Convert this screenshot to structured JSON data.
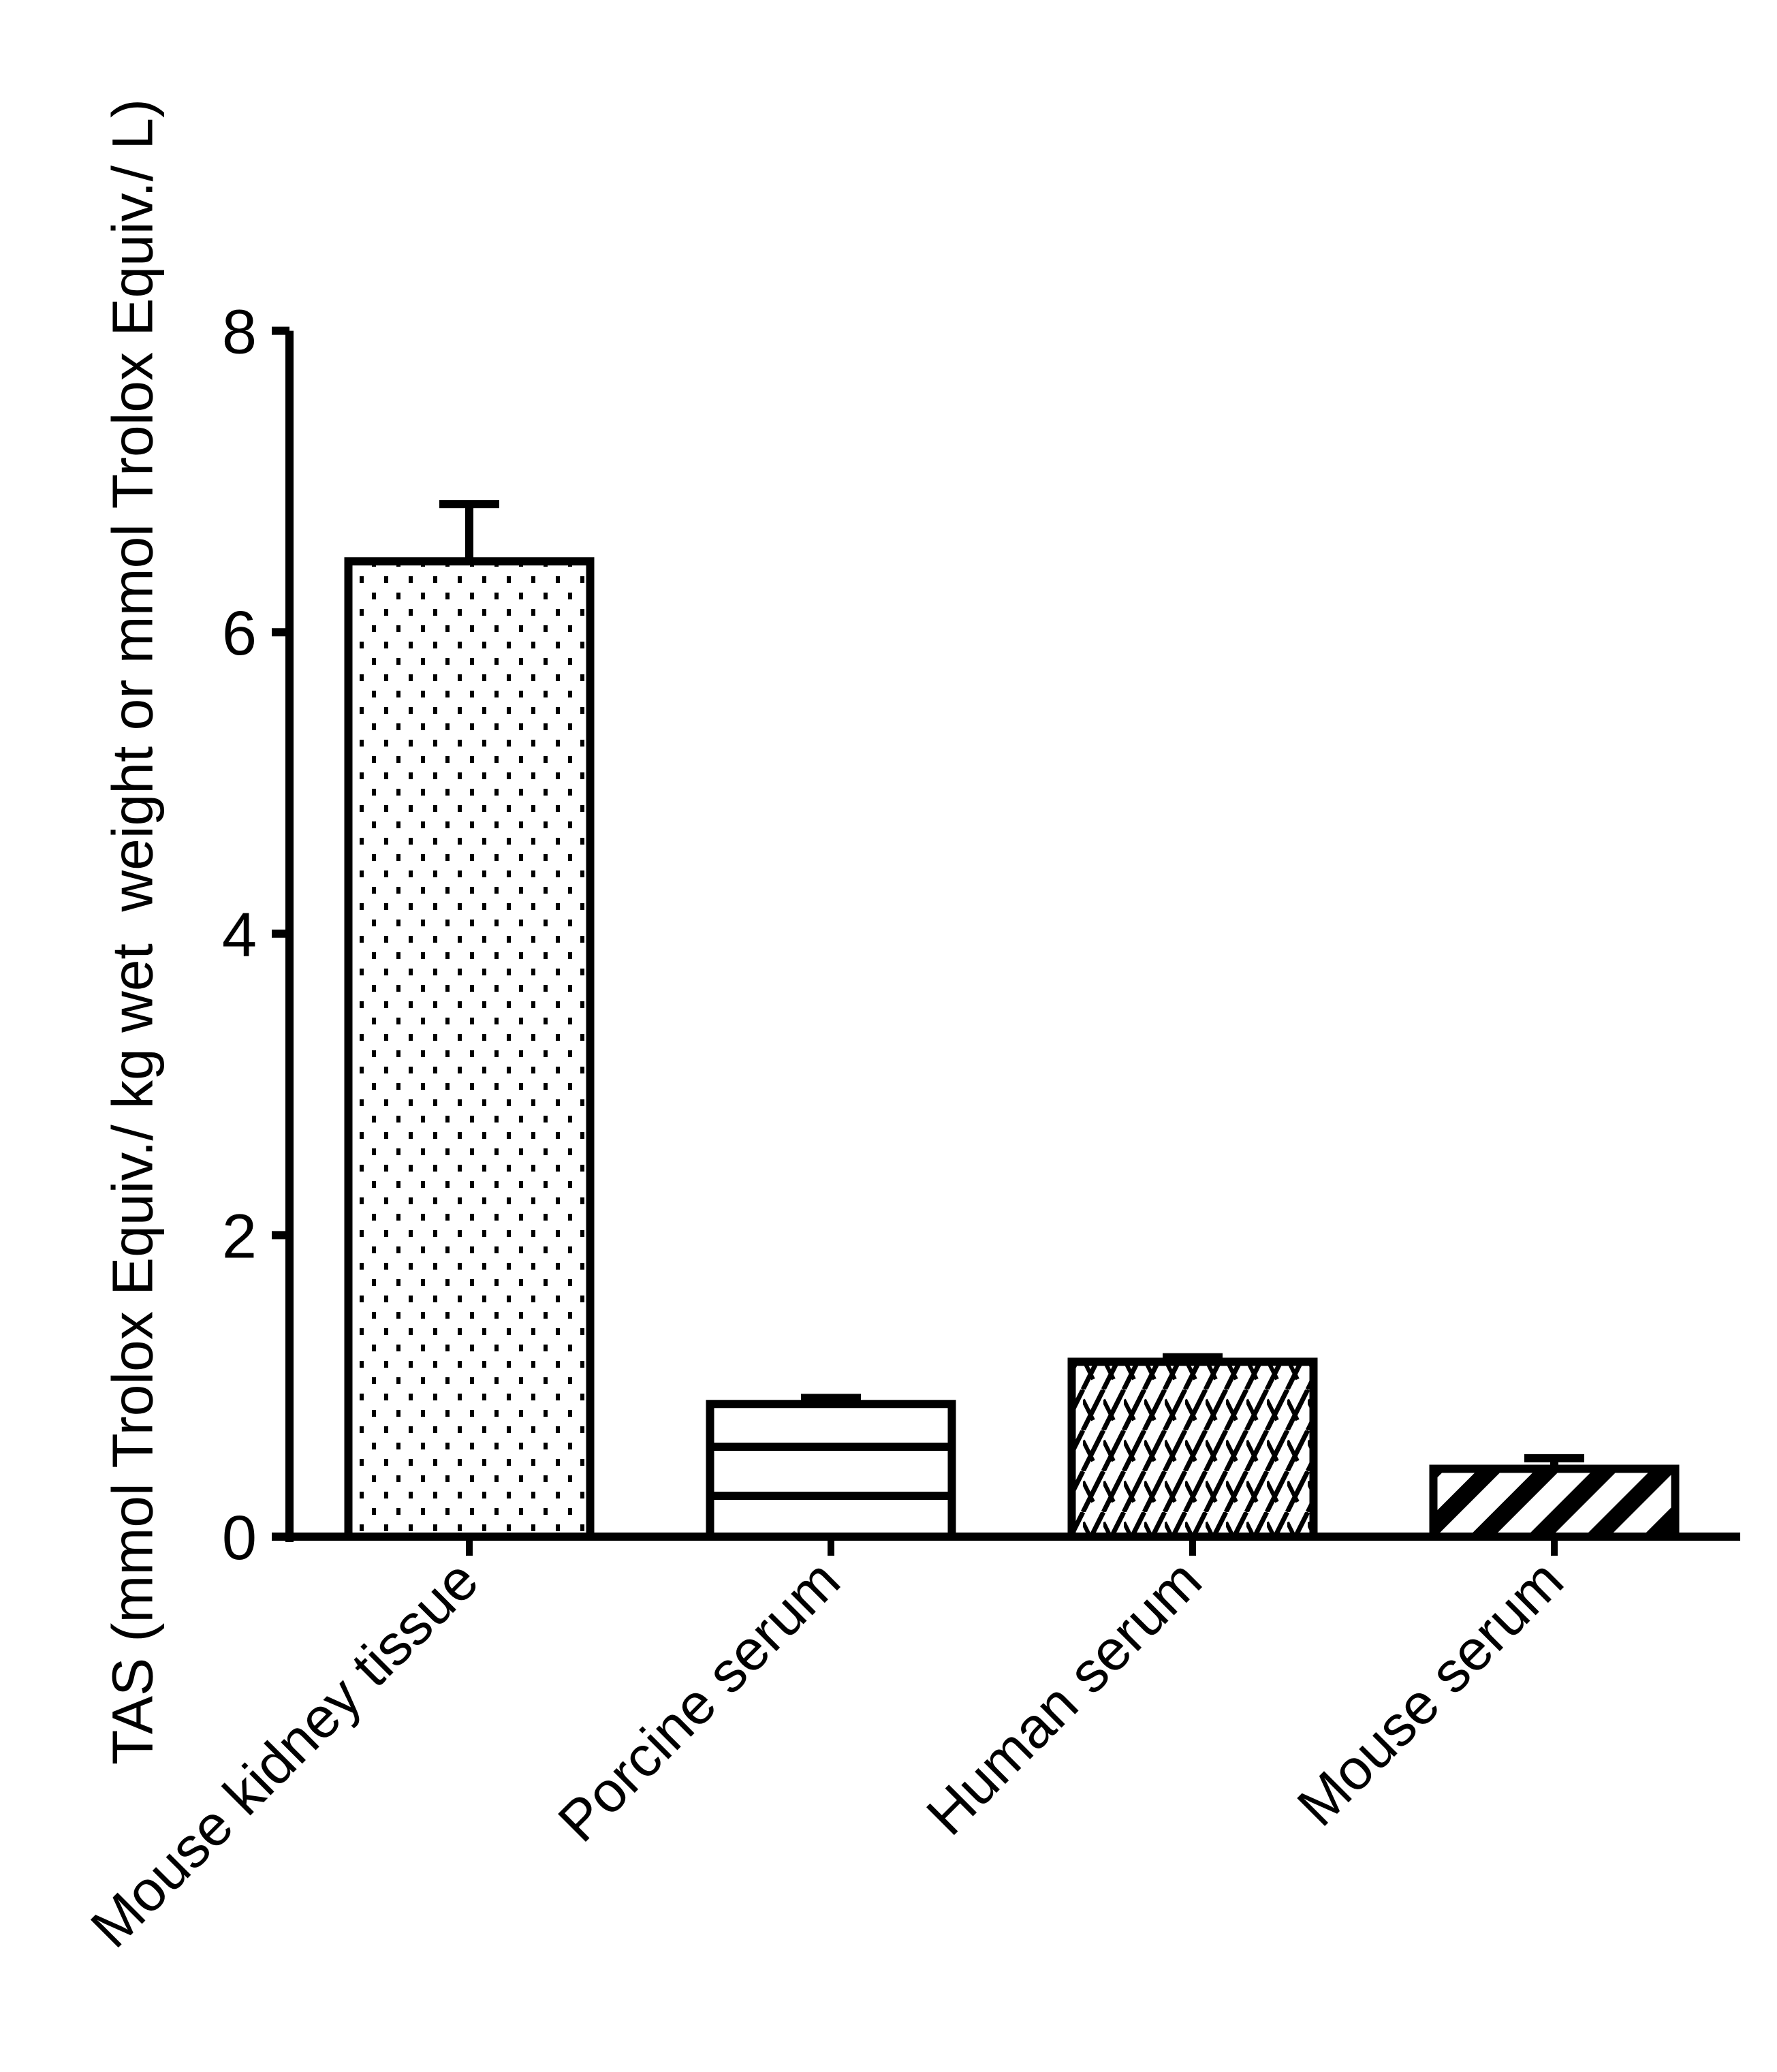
{
  "chart_data": {
    "type": "bar",
    "title": "",
    "xlabel": "",
    "ylabel": "TAS (mmol Trolox Equiv./ kg wet  weight or mmol Trolox Equiv./ L)",
    "ylim": [
      0,
      8
    ],
    "yticks": [
      0,
      2,
      4,
      6,
      8
    ],
    "grid": false,
    "legend": null,
    "categories": [
      "Mouse kidney tissue",
      "Porcine serum",
      "Human serum",
      "Mouse serum"
    ],
    "values": [
      6.47,
      0.88,
      1.16,
      0.45
    ],
    "error_bars": [
      0.38,
      0.04,
      0.03,
      0.07
    ],
    "fill_patterns": [
      "dots",
      "horizontal-lines",
      "diagonal-crosshatch",
      "wide-diagonal-stripes"
    ],
    "colors": {
      "stroke": "#000000",
      "fill": "#ffffff"
    }
  }
}
